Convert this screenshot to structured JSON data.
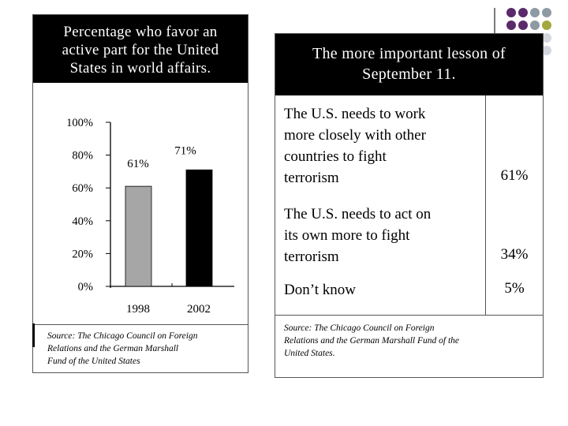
{
  "left": {
    "title_lines": [
      "Percentage who favor an",
      "active part for the United",
      "States in world affairs."
    ],
    "source_lines": [
      "Source: The Chicago Council on Foreign",
      "Relations and the German Marshall",
      "Fund of the United States"
    ]
  },
  "right": {
    "title_lines": [
      "The more important lesson of",
      "September 11."
    ],
    "rows": [
      {
        "label_lines": [
          "The U.S. needs to work",
          "more closely with other",
          "countries to fight",
          "terrorism"
        ],
        "value": "61%"
      },
      {
        "label_lines": [
          "The U.S. needs to act on",
          "its own more to fight",
          "terrorism"
        ],
        "value": "34%"
      },
      {
        "label_lines": [
          "Don’t know"
        ],
        "value": "5%"
      }
    ],
    "source_lines": [
      "Source: The Chicago Council on Foreign",
      "Relations and the German Marshall Fund of the",
      "United States."
    ]
  },
  "colors": {
    "bar_1998": "#a6a6a6",
    "bar_2002": "#000000",
    "dot_purple": "#5b2a6b",
    "dot_olive": "#a3a83e",
    "dot_gray": "#8e9aa4",
    "dot_light": "#d4d6de"
  },
  "chart_data": {
    "type": "bar",
    "categories": [
      "1998",
      "2002"
    ],
    "values": [
      61,
      71
    ],
    "data_labels": [
      "61%",
      "71%"
    ],
    "ylim": [
      0,
      100
    ],
    "yticks": [
      "0%",
      "20%",
      "40%",
      "60%",
      "80%",
      "100%"
    ],
    "grid": false,
    "legend": "none"
  }
}
